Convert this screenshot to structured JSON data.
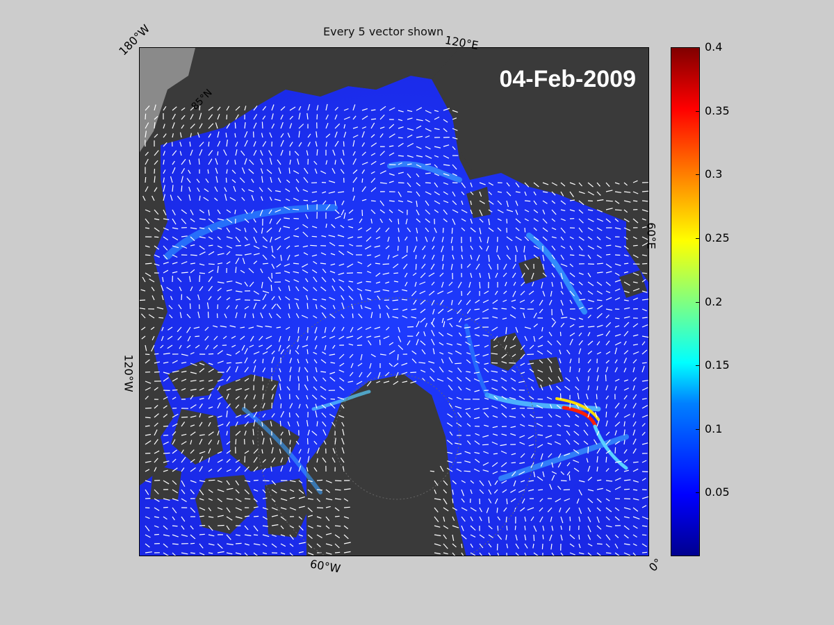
{
  "title": "Every 5 vector shown",
  "date_label": "04-Feb-2009",
  "lon_labels": {
    "w180": "180°W",
    "e120": "120°E",
    "e60": "60°E",
    "w120": "120°W",
    "w60": "60°W",
    "zero": "0°"
  },
  "lat_label": "85°N",
  "colorbar": {
    "colormap": "jet",
    "min": 0,
    "max": 0.4,
    "ticks": [
      "0.4",
      "0.35",
      "0.3",
      "0.25",
      "0.2",
      "0.15",
      "0.1",
      "0.05"
    ],
    "tick_values": [
      0.4,
      0.35,
      0.3,
      0.25,
      0.2,
      0.15,
      0.1,
      0.05
    ]
  },
  "colors": {
    "background": "#cccccc",
    "land": "#3a3a3a",
    "land_outside": "#8a8a8a",
    "ocean_low": "#1a1aff",
    "vector": "#ffffff"
  }
}
